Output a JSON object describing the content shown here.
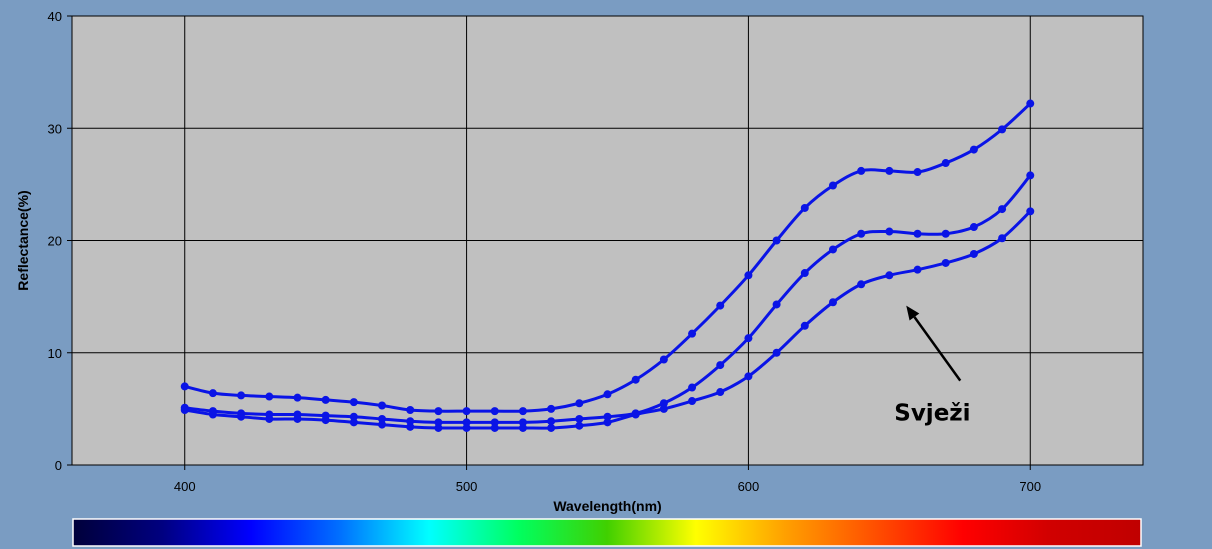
{
  "chart_data": {
    "type": "line",
    "xlabel": "Wavelength(nm)",
    "ylabel": "Reflectance(%)",
    "xlim": [
      360,
      740
    ],
    "ylim": [
      0,
      40
    ],
    "xticks": [
      400,
      500,
      600,
      700
    ],
    "yticks": [
      0,
      10,
      20,
      30,
      40
    ],
    "grid": true,
    "plot_background": "#c0c0c0",
    "series_color": "#0a14e6",
    "x": [
      400,
      410,
      420,
      430,
      440,
      450,
      460,
      470,
      480,
      490,
      500,
      510,
      520,
      530,
      540,
      550,
      560,
      570,
      580,
      590,
      600,
      610,
      620,
      630,
      640,
      650,
      660,
      670,
      680,
      690,
      700
    ],
    "series": [
      {
        "values": [
          7.0,
          6.4,
          6.2,
          6.1,
          6.0,
          5.8,
          5.6,
          5.3,
          4.9,
          4.8,
          4.8,
          4.8,
          4.8,
          5.0,
          5.5,
          6.3,
          7.6,
          9.4,
          11.7,
          14.2,
          16.9,
          20.0,
          22.9,
          24.9,
          26.2,
          26.2,
          26.1,
          26.9,
          28.1,
          29.9,
          32.2
        ]
      },
      {
        "values": [
          5.1,
          4.8,
          4.6,
          4.5,
          4.5,
          4.4,
          4.3,
          4.1,
          3.9,
          3.8,
          3.8,
          3.8,
          3.8,
          3.9,
          4.1,
          4.3,
          4.6,
          5.5,
          6.9,
          8.9,
          11.3,
          14.3,
          17.1,
          19.2,
          20.6,
          20.8,
          20.6,
          20.6,
          21.2,
          22.8,
          25.8
        ]
      },
      {
        "values": [
          4.9,
          4.5,
          4.3,
          4.1,
          4.1,
          4.0,
          3.8,
          3.6,
          3.4,
          3.3,
          3.3,
          3.3,
          3.3,
          3.3,
          3.5,
          3.8,
          4.5,
          5.0,
          5.7,
          6.5,
          7.9,
          10.0,
          12.4,
          14.5,
          16.1,
          16.9,
          17.4,
          18.0,
          18.8,
          20.2,
          22.6
        ]
      }
    ],
    "annotations": [
      {
        "text": "Svježi",
        "arrow_target": [
          656,
          14.2
        ]
      }
    ],
    "spectrum_bar": [
      "#00003a",
      "#000080",
      "#0000ff",
      "#0070ff",
      "#00ffff",
      "#00ff60",
      "#40d000",
      "#ffff00",
      "#ffa000",
      "#ff5000",
      "#ff0000",
      "#d00000",
      "#c00000"
    ]
  }
}
